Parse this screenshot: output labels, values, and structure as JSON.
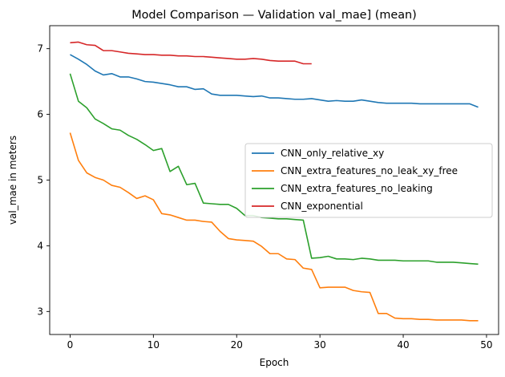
{
  "chart_data": {
    "type": "line",
    "title": "Model Comparison — Validation val_mae] (mean)",
    "xlabel": "Epoch",
    "ylabel": "val_mae in meters",
    "xlim": [
      -2.45,
      51.45
    ],
    "ylim": [
      2.65,
      7.35
    ],
    "xticks": [
      0,
      10,
      20,
      30,
      40,
      50
    ],
    "yticks": [
      3,
      4,
      5,
      6,
      7
    ],
    "grid": false,
    "legend_position": "center-right",
    "series": [
      {
        "name": "CNN_only_relative_xy",
        "color": "#1f77b4",
        "x": [
          0,
          1,
          2,
          3,
          4,
          5,
          6,
          7,
          8,
          9,
          10,
          11,
          12,
          13,
          14,
          15,
          16,
          17,
          18,
          19,
          20,
          21,
          22,
          23,
          24,
          25,
          26,
          27,
          28,
          29,
          30,
          31,
          32,
          33,
          34,
          35,
          36,
          37,
          38,
          39,
          40,
          41,
          42,
          43,
          44,
          45,
          46,
          47,
          48,
          49
        ],
        "y": [
          6.91,
          6.84,
          6.76,
          6.66,
          6.6,
          6.62,
          6.57,
          6.57,
          6.54,
          6.5,
          6.49,
          6.47,
          6.45,
          6.42,
          6.42,
          6.38,
          6.39,
          6.31,
          6.29,
          6.29,
          6.29,
          6.28,
          6.27,
          6.28,
          6.25,
          6.25,
          6.24,
          6.23,
          6.23,
          6.24,
          6.22,
          6.2,
          6.21,
          6.2,
          6.2,
          6.22,
          6.2,
          6.18,
          6.17,
          6.17,
          6.17,
          6.17,
          6.16,
          6.16,
          6.16,
          6.16,
          6.16,
          6.16,
          6.16,
          6.11
        ]
      },
      {
        "name": "CNN_extra_features_no_leak_xy_free",
        "color": "#ff7f0e",
        "x": [
          0,
          1,
          2,
          3,
          4,
          5,
          6,
          7,
          8,
          9,
          10,
          11,
          12,
          13,
          14,
          15,
          16,
          17,
          18,
          19,
          20,
          21,
          22,
          23,
          24,
          25,
          26,
          27,
          28,
          29,
          30,
          31,
          32,
          33,
          34,
          35,
          36,
          37,
          38,
          39,
          40,
          41,
          42,
          43,
          44,
          45,
          46,
          47,
          48,
          49
        ],
        "y": [
          5.72,
          5.3,
          5.11,
          5.04,
          5.0,
          4.92,
          4.89,
          4.81,
          4.72,
          4.76,
          4.7,
          4.49,
          4.47,
          4.43,
          4.39,
          4.39,
          4.37,
          4.36,
          4.22,
          4.11,
          4.09,
          4.08,
          4.07,
          3.99,
          3.88,
          3.88,
          3.8,
          3.79,
          3.66,
          3.64,
          3.36,
          3.37,
          3.37,
          3.37,
          3.32,
          3.3,
          3.29,
          2.97,
          2.97,
          2.9,
          2.89,
          2.89,
          2.88,
          2.88,
          2.87,
          2.87,
          2.87,
          2.87,
          2.86,
          2.86
        ]
      },
      {
        "name": "CNN_extra_features_no_leaking",
        "color": "#2ca02c",
        "x": [
          0,
          1,
          2,
          3,
          4,
          5,
          6,
          7,
          8,
          9,
          10,
          11,
          12,
          13,
          14,
          15,
          16,
          17,
          18,
          19,
          20,
          21,
          22,
          23,
          24,
          25,
          26,
          27,
          28,
          29,
          30,
          31,
          32,
          33,
          34,
          35,
          36,
          37,
          38,
          39,
          40,
          41,
          42,
          43,
          44,
          45,
          46,
          47,
          48,
          49
        ],
        "y": [
          6.62,
          6.2,
          6.1,
          5.93,
          5.86,
          5.78,
          5.76,
          5.68,
          5.62,
          5.54,
          5.45,
          5.48,
          5.13,
          5.21,
          4.93,
          4.95,
          4.65,
          4.64,
          4.63,
          4.63,
          4.57,
          4.46,
          4.46,
          4.43,
          4.42,
          4.41,
          4.41,
          4.4,
          4.39,
          3.81,
          3.82,
          3.84,
          3.8,
          3.8,
          3.79,
          3.81,
          3.8,
          3.78,
          3.78,
          3.78,
          3.77,
          3.77,
          3.77,
          3.77,
          3.75,
          3.75,
          3.75,
          3.74,
          3.73,
          3.72
        ]
      },
      {
        "name": "CNN_exponential",
        "color": "#d62728",
        "x": [
          0,
          1,
          2,
          3,
          4,
          5,
          6,
          7,
          8,
          9,
          10,
          11,
          12,
          13,
          14,
          15,
          16,
          17,
          18,
          19,
          20,
          21,
          22,
          23,
          24,
          25,
          26,
          27,
          28,
          29
        ],
        "y": [
          7.09,
          7.1,
          7.06,
          7.05,
          6.97,
          6.97,
          6.95,
          6.93,
          6.92,
          6.91,
          6.91,
          6.9,
          6.9,
          6.89,
          6.89,
          6.88,
          6.88,
          6.87,
          6.86,
          6.85,
          6.84,
          6.84,
          6.85,
          6.84,
          6.82,
          6.81,
          6.81,
          6.81,
          6.77,
          6.77
        ]
      }
    ]
  }
}
